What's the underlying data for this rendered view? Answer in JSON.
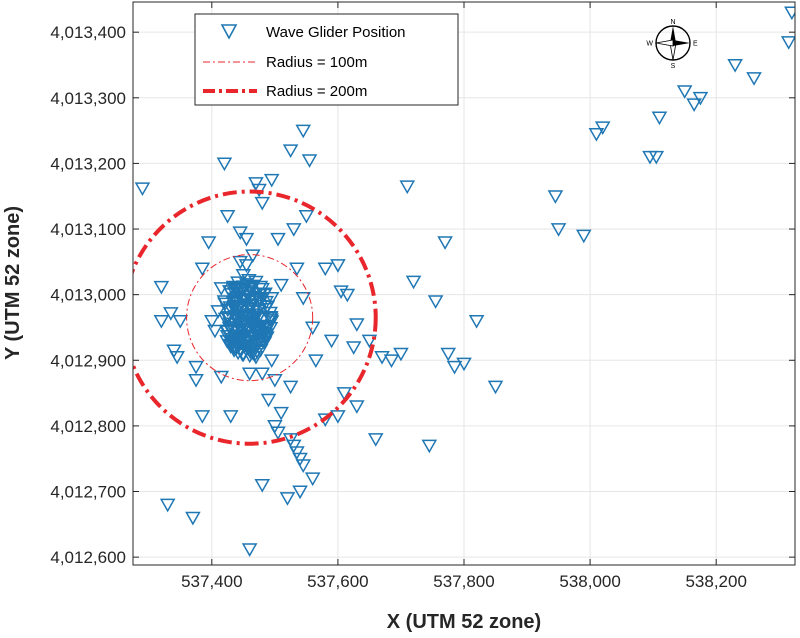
{
  "chart_data": {
    "type": "scatter",
    "xlabel": "X (UTM 52 zone)",
    "ylabel": "Y (UTM 52 zone)",
    "xlim": [
      537275,
      538325
    ],
    "ylim": [
      4012588,
      4013446
    ],
    "xticks": [
      537400,
      537600,
      537800,
      538000,
      538200
    ],
    "xtick_labels": [
      "537,400",
      "537,600",
      "537,800",
      "538,000",
      "538,200"
    ],
    "yticks": [
      4012600,
      4012700,
      4012800,
      4012900,
      4013000,
      4013100,
      4013200,
      4013300,
      4013400
    ],
    "ytick_labels": [
      "4,012,600",
      "4,012,700",
      "4,012,800",
      "4,012,900",
      "4,013,000",
      "4,013,100",
      "4,013,200",
      "4,013,300",
      "4,013,400"
    ],
    "grid": true,
    "legend_position": "top-left",
    "center": [
      537460,
      4012965
    ],
    "series": [
      {
        "name": "Wave Glider Position",
        "marker": "down-triangle",
        "color": "#1f77b4",
        "x": [
          537290,
          537320,
          537335,
          537340,
          537345,
          537375,
          537385,
          537385,
          537395,
          537400,
          537405,
          537415,
          537420,
          537425,
          537430,
          537440,
          537445,
          537455,
          537460,
          537470,
          537475,
          537480,
          537495,
          537505,
          537510,
          537525,
          537530,
          537545,
          537550,
          537555,
          537560,
          537580,
          537590,
          537600,
          537605,
          537615,
          537625,
          537630,
          537650,
          537660,
          537670,
          537685,
          537700,
          537710,
          537720,
          537745,
          537755,
          537770,
          537775,
          537785,
          537800,
          537820,
          537850,
          537945,
          537950,
          537990,
          538010,
          538020,
          538095,
          538105,
          538110,
          538150,
          538165,
          538175,
          538230,
          538260,
          538315,
          538320,
          537330,
          537370,
          537480,
          537520,
          537540,
          537560,
          537610,
          537630,
          537460,
          537500,
          537525,
          537440,
          537410,
          537375,
          537495,
          537320,
          537350,
          537565,
          537545,
          537580,
          537600,
          537535,
          537500,
          537505,
          537525,
          537530,
          537535,
          537540,
          537545,
          537510,
          537490,
          537480,
          537470,
          537460,
          537450,
          537445,
          537415,
          537420,
          537435,
          537445,
          537455,
          537465,
          537475,
          537485,
          537495
        ],
        "y": [
          4013162,
          4013012,
          4012972,
          4012915,
          4012905,
          4012870,
          4012815,
          4013040,
          4013080,
          4012960,
          4012945,
          4012875,
          4013200,
          4013120,
          4012815,
          4012945,
          4013095,
          4013085,
          4012612,
          4013170,
          4013160,
          4013140,
          4013175,
          4013085,
          4013015,
          4013220,
          4013100,
          4013250,
          4013120,
          4013205,
          4012950,
          4013040,
          4012930,
          4013045,
          4013005,
          4013000,
          4012920,
          4012955,
          4012930,
          4012780,
          4012905,
          4012900,
          4012910,
          4013165,
          4013020,
          4012770,
          4012990,
          4013080,
          4012910,
          4012890,
          4012895,
          4012960,
          4012860,
          4013150,
          4013100,
          4013090,
          4013245,
          4013255,
          4013210,
          4013210,
          4013270,
          4013310,
          4013290,
          4013300,
          4013350,
          4013330,
          4013385,
          4013430,
          4012680,
          4012660,
          4012710,
          4012690,
          4012700,
          4012720,
          4012850,
          4012830,
          4012880,
          4012870,
          4012860,
          4012960,
          4012975,
          4012890,
          4012900,
          4012960,
          4012960,
          4012900,
          4012995,
          4012810,
          4012815,
          4013040,
          4012800,
          4012790,
          4012780,
          4012770,
          4012760,
          4012750,
          4012740,
          4012820,
          4012840,
          4012880,
          4012905,
          4012915,
          4013030,
          4013050,
          4013010,
          4012990,
          4012920,
          4012935,
          4013045,
          4013060,
          4012950,
          4012935,
          4012995
        ]
      },
      {
        "name": "Radius = 100m",
        "type": "circle",
        "radius": 100,
        "color": "#e8262b",
        "style": "dash-dot-thin"
      },
      {
        "name": "Radius = 200m",
        "type": "circle",
        "radius": 200,
        "color": "#e8262b",
        "style": "dash-dot-thick"
      }
    ],
    "cluster": {
      "description_color": "#1f77b4",
      "center": [
        537455,
        4012965
      ],
      "extent_x": 40,
      "extent_y": 60,
      "count": 180
    }
  },
  "compass": {
    "n": "N",
    "s": "S",
    "e": "E",
    "w": "W"
  }
}
